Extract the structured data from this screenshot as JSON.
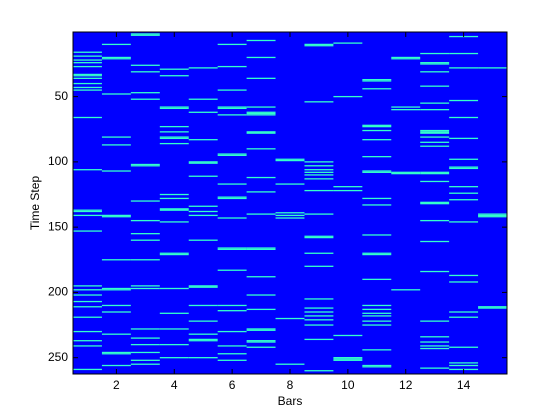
{
  "chart_data": {
    "type": "raster",
    "xlabel": "Bars",
    "ylabel": "Time Step",
    "xlim": [
      0.5,
      15.5
    ],
    "ylim": [
      0.5,
      262.5
    ],
    "y_reversed": true,
    "xticks": [
      2,
      4,
      6,
      8,
      10,
      12,
      14
    ],
    "yticks": [
      50,
      100,
      150,
      200,
      250
    ],
    "background_color": "#0000ff",
    "color": "#33ffcc",
    "x": [
      1,
      2,
      3,
      4,
      5,
      6,
      7,
      8,
      9,
      10,
      11,
      12,
      13,
      14,
      15
    ],
    "events": [
      [
        16,
        19,
        22,
        24,
        27,
        33,
        34,
        36,
        40,
        43,
        45,
        66,
        106,
        137,
        138,
        141,
        153,
        195,
        198,
        202,
        207,
        211,
        219,
        230,
        237,
        241,
        259
      ],
      [
        10,
        20,
        21,
        48,
        81,
        87,
        107,
        141,
        142,
        175,
        197,
        198,
        210,
        215,
        232,
        246,
        247,
        256
      ],
      [
        2,
        3,
        26,
        31,
        47,
        52,
        102,
        103,
        130,
        145,
        155,
        160,
        175,
        195,
        197,
        228,
        235,
        240,
        246,
        252,
        255
      ],
      [
        29,
        34,
        58,
        59,
        73,
        77,
        81,
        82,
        86,
        125,
        128,
        136,
        137,
        146,
        170,
        171,
        197,
        216,
        228,
        240,
        250
      ],
      [
        28,
        52,
        62,
        83,
        100,
        101,
        111,
        134,
        138,
        141,
        160,
        195,
        196,
        210,
        222,
        232,
        236,
        237,
        250
      ],
      [
        10,
        27,
        45,
        58,
        59,
        64,
        94,
        95,
        117,
        127,
        128,
        143,
        166,
        167,
        183,
        210,
        214,
        230,
        241,
        247,
        252
      ],
      [
        7,
        20,
        36,
        58,
        62,
        63,
        64,
        77,
        78,
        90,
        112,
        123,
        140,
        166,
        167,
        188,
        202,
        213,
        228,
        229,
        237,
        238,
        242
      ],
      [
        98,
        99,
        117,
        139,
        141,
        143,
        220,
        255
      ],
      [
        10,
        11,
        54,
        100,
        103,
        106,
        108,
        110,
        113,
        122,
        140,
        157,
        158,
        170,
        180,
        205,
        212,
        215,
        218,
        221,
        225,
        236,
        260
      ],
      [
        9,
        50,
        119,
        122,
        233,
        250,
        251,
        252
      ],
      [
        37,
        38,
        44,
        72,
        73,
        76,
        83,
        96,
        107,
        108,
        128,
        133,
        156,
        170,
        171,
        190,
        210,
        213,
        216,
        218,
        222,
        225,
        244,
        256,
        257
      ],
      [
        20,
        21,
        58,
        60,
        108,
        109,
        198
      ],
      [
        17,
        24,
        25,
        31,
        42,
        55,
        60,
        76,
        77,
        78,
        81,
        85,
        88,
        108,
        109,
        115,
        131,
        132,
        145,
        161,
        184,
        222,
        234,
        238,
        241,
        243,
        258
      ],
      [
        4,
        17,
        28,
        53,
        66,
        82,
        98,
        104,
        105,
        119,
        124,
        129,
        146,
        187,
        192,
        215,
        219,
        242,
        254,
        256,
        259
      ],
      [
        28,
        140,
        141,
        142,
        211,
        212
      ]
    ]
  }
}
